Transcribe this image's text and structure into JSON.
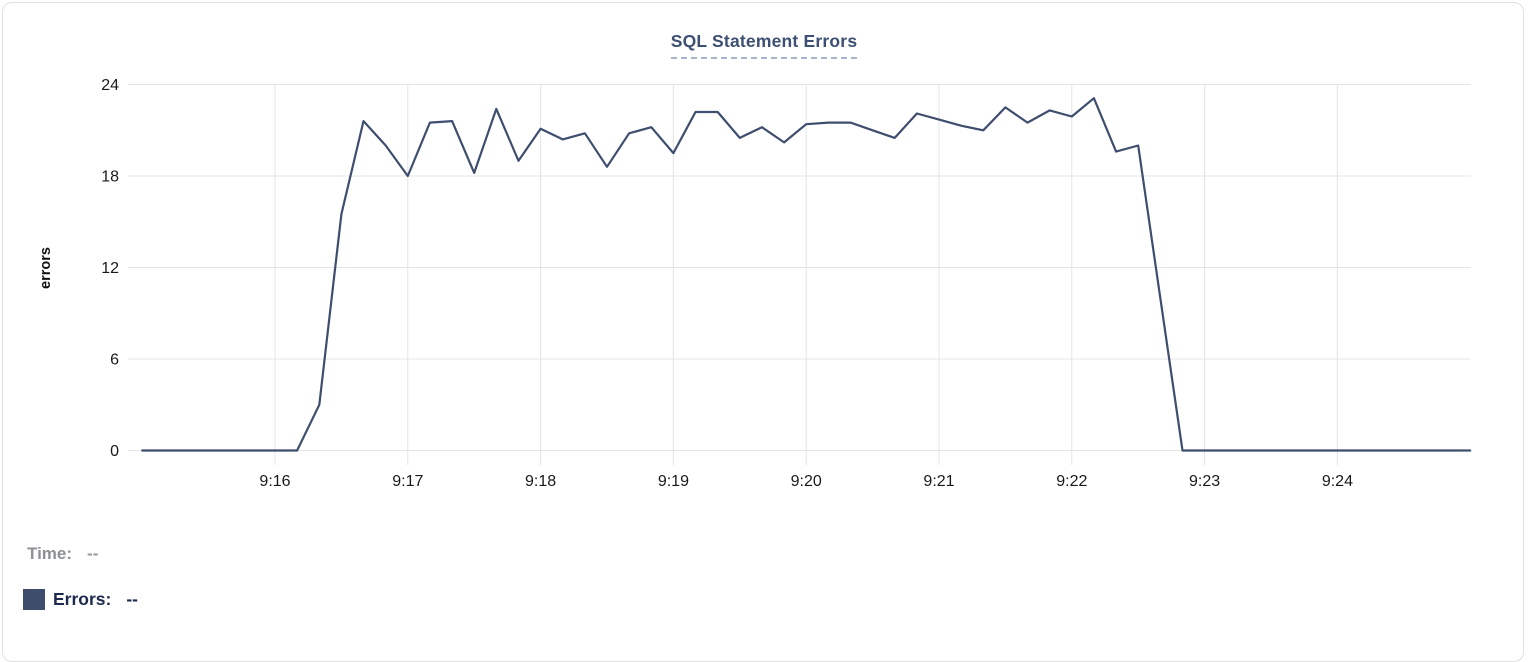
{
  "chart_data": {
    "type": "line",
    "title": "SQL Statement Errors",
    "xlabel": "",
    "ylabel": "errors",
    "x_ticks": [
      "9:16",
      "9:17",
      "9:18",
      "9:19",
      "9:20",
      "9:21",
      "9:22",
      "9:23",
      "9:24"
    ],
    "y_ticks": [
      0,
      6,
      12,
      18,
      24
    ],
    "ylim": [
      0,
      24
    ],
    "xlim": [
      "9:15:00",
      "9:25:00"
    ],
    "grid": true,
    "legend_position": "bottom-left",
    "series": [
      {
        "name": "Errors",
        "color": "#3f4e6e",
        "points": [
          [
            "9:15:00",
            0
          ],
          [
            "9:15:10",
            0
          ],
          [
            "9:15:20",
            0
          ],
          [
            "9:15:30",
            0
          ],
          [
            "9:15:40",
            0
          ],
          [
            "9:15:50",
            0
          ],
          [
            "9:16:00",
            0
          ],
          [
            "9:16:10",
            0
          ],
          [
            "9:16:20",
            3
          ],
          [
            "9:16:30",
            15.5
          ],
          [
            "9:16:40",
            21.6
          ],
          [
            "9:16:50",
            20
          ],
          [
            "9:17:00",
            18
          ],
          [
            "9:17:10",
            21.5
          ],
          [
            "9:17:20",
            21.6
          ],
          [
            "9:17:30",
            18.2
          ],
          [
            "9:17:40",
            22.4
          ],
          [
            "9:17:50",
            19
          ],
          [
            "9:18:00",
            21.1
          ],
          [
            "9:18:10",
            20.4
          ],
          [
            "9:18:20",
            20.8
          ],
          [
            "9:18:30",
            18.6
          ],
          [
            "9:18:40",
            20.8
          ],
          [
            "9:18:50",
            21.2
          ],
          [
            "9:19:00",
            19.5
          ],
          [
            "9:19:10",
            22.2
          ],
          [
            "9:19:20",
            22.2
          ],
          [
            "9:19:30",
            20.5
          ],
          [
            "9:19:40",
            21.2
          ],
          [
            "9:19:50",
            20.2
          ],
          [
            "9:20:00",
            21.4
          ],
          [
            "9:20:10",
            21.5
          ],
          [
            "9:20:20",
            21.5
          ],
          [
            "9:20:30",
            21
          ],
          [
            "9:20:40",
            20.5
          ],
          [
            "9:20:50",
            22.1
          ],
          [
            "9:21:00",
            21.7
          ],
          [
            "9:21:10",
            21.3
          ],
          [
            "9:21:20",
            21
          ],
          [
            "9:21:30",
            22.5
          ],
          [
            "9:21:40",
            21.5
          ],
          [
            "9:21:50",
            22.3
          ],
          [
            "9:22:00",
            21.9
          ],
          [
            "9:22:10",
            23.1
          ],
          [
            "9:22:20",
            19.6
          ],
          [
            "9:22:30",
            20
          ],
          [
            "9:22:40",
            10
          ],
          [
            "9:22:50",
            0
          ],
          [
            "9:23:00",
            0
          ],
          [
            "9:23:10",
            0
          ],
          [
            "9:23:20",
            0
          ],
          [
            "9:23:30",
            0
          ],
          [
            "9:23:40",
            0
          ],
          [
            "9:23:50",
            0
          ],
          [
            "9:24:00",
            0
          ],
          [
            "9:24:10",
            0
          ],
          [
            "9:24:20",
            0
          ],
          [
            "9:24:30",
            0
          ],
          [
            "9:24:40",
            0
          ],
          [
            "9:24:50",
            0
          ],
          [
            "9:25:00",
            0
          ]
        ]
      }
    ]
  },
  "tooltip": {
    "time_label": "Time:",
    "time_value": "--",
    "errors_label": "Errors:",
    "errors_value": "--"
  },
  "colors": {
    "line": "#3f4e6e",
    "swatch": "#3e4d6b",
    "grid": "#e3e4e6",
    "title": "#3d4f72",
    "title_underline": "#a9b4cf",
    "axis_text": "#17191c",
    "time_label_text": "#8d9096",
    "errors_label_text": "#1d2a4e",
    "card_border": "#dee0e3"
  }
}
